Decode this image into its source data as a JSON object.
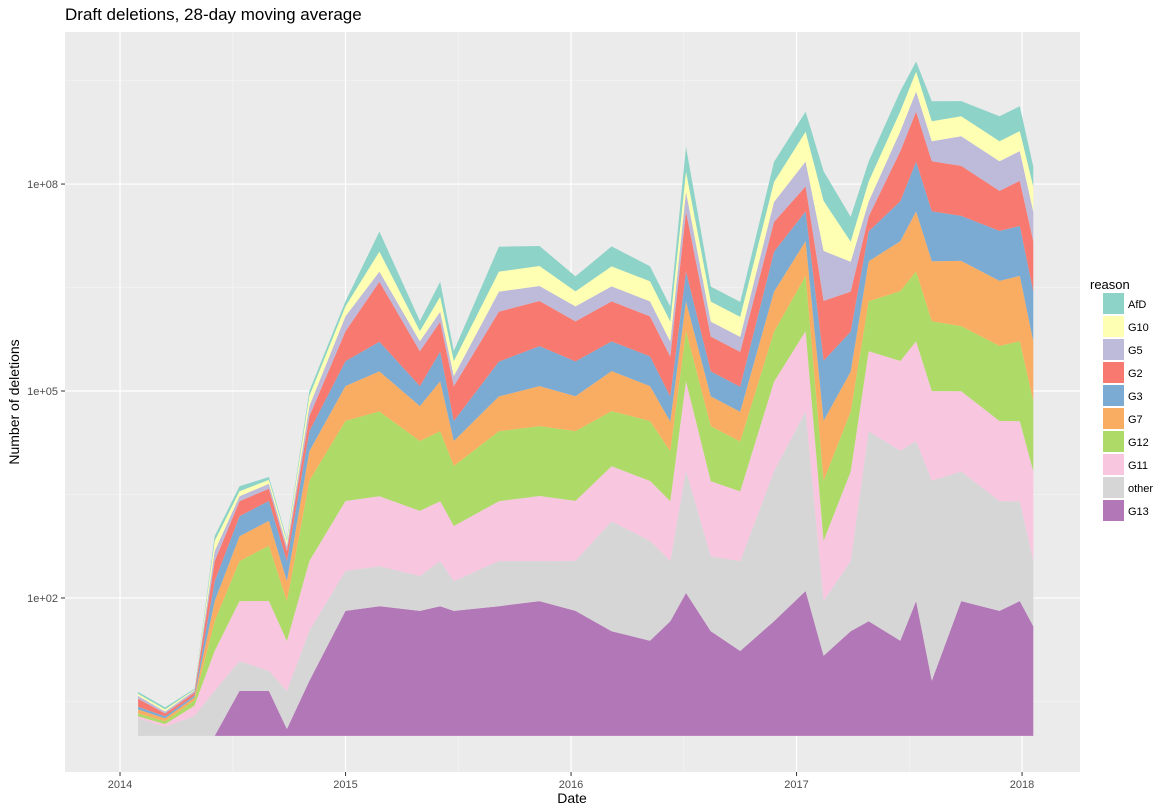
{
  "chart_data": {
    "type": "stacked-area",
    "title": "Draft deletions, 28-day moving average",
    "x_label": "Date",
    "y_label": "Number of deletions",
    "legend_title": "reason",
    "log_y": true,
    "grid": true,
    "legend_position": "right",
    "x": [
      2014.08,
      2014.2,
      2014.33,
      2014.42,
      2014.53,
      2014.66,
      2014.74,
      2014.84,
      2015.0,
      2015.15,
      2015.33,
      2015.42,
      2015.48,
      2015.68,
      2015.86,
      2016.02,
      2016.18,
      2016.35,
      2016.44,
      2016.51,
      2016.62,
      2016.75,
      2016.9,
      2017.04,
      2017.12,
      2017.24,
      2017.32,
      2017.46,
      2017.53,
      2017.6,
      2017.73,
      2017.9,
      2017.99,
      2018.05
    ],
    "xlim": [
      2013.756,
      2018.257
    ],
    "xticks": [
      2014,
      2015,
      2016,
      2017,
      2018
    ],
    "ylim": [
      0.3,
      16000000000
    ],
    "yticks": [
      {
        "value": 100,
        "label": "1e+02"
      },
      {
        "value": 100000,
        "label": "1e+05"
      },
      {
        "value": 100000000,
        "label": "1e+08"
      }
    ],
    "series": [
      {
        "name": "AfD",
        "color": "#8dd3c7",
        "values": [
          1.07,
          1.07,
          1.03,
          1.18,
          1.18,
          1.1,
          1.07,
          1.18,
          1.18,
          1.95,
          1.4,
          1.65,
          1.4,
          2.3,
          1.95,
          1.65,
          1.95,
          1.65,
          1.65,
          2.3,
          1.65,
          1.65,
          1.95,
          1.95,
          2.7,
          2.3,
          1.95,
          1.95,
          1.4,
          1.95,
          1.65,
          2.3,
          2.3,
          1.95
        ]
      },
      {
        "name": "G10",
        "color": "#ffffb3",
        "values": [
          1.07,
          1.07,
          1.03,
          1.4,
          1.18,
          1.14,
          1.18,
          1.4,
          1.4,
          1.95,
          1.4,
          1.65,
          1.65,
          1.95,
          1.95,
          1.65,
          1.95,
          1.95,
          1.95,
          1.95,
          1.95,
          1.95,
          1.95,
          2.7,
          5.3,
          1.95,
          1.95,
          1.95,
          1.95,
          1.95,
          1.95,
          1.95,
          1.95,
          2.3
        ]
      },
      {
        "name": "G5",
        "color": "#bebada",
        "values": [
          1.1,
          1.07,
          1.07,
          1.4,
          1.18,
          1.18,
          1.18,
          1.4,
          1.65,
          1.4,
          1.4,
          1.4,
          1.4,
          1.95,
          1.65,
          1.65,
          1.65,
          1.65,
          1.65,
          1.95,
          1.65,
          1.65,
          1.95,
          2.3,
          5.3,
          2.7,
          1.65,
          1.95,
          1.95,
          1.95,
          2.7,
          2.7,
          2.7,
          2.7
        ]
      },
      {
        "name": "G2",
        "color": "#f7796f",
        "values": [
          1.3,
          1.1,
          1.1,
          1.95,
          1.65,
          1.5,
          1.4,
          1.65,
          2.7,
          7.4,
          3.2,
          2.7,
          3.2,
          5.3,
          4.5,
          3.8,
          3.8,
          3.8,
          3.8,
          7.4,
          3.2,
          3.2,
          2.7,
          2.3,
          7.4,
          3.8,
          1.65,
          5.3,
          5.3,
          5.3,
          5.3,
          3.8,
          4.5,
          5.3
        ]
      },
      {
        "name": "G3",
        "color": "#7baad2",
        "values": [
          1.1,
          1.07,
          1.07,
          1.95,
          1.95,
          1.95,
          1.95,
          1.95,
          2.3,
          2.7,
          1.95,
          2.7,
          1.95,
          3.2,
          3.8,
          3.2,
          2.7,
          2.7,
          2.3,
          2.7,
          2.3,
          2.3,
          3.8,
          2.7,
          7.4,
          3.8,
          2.7,
          3.8,
          5.3,
          5.3,
          4.5,
          5.3,
          5.3,
          5.3
        ]
      },
      {
        "name": "G7",
        "color": "#f9ad63",
        "values": [
          1.14,
          1.1,
          1.1,
          1.95,
          2.3,
          2.3,
          1.95,
          2.7,
          3.2,
          3.8,
          3.2,
          5.3,
          2.3,
          3.2,
          3.8,
          3.2,
          3.8,
          3.2,
          2.7,
          2.7,
          2.7,
          2.7,
          3.8,
          3.2,
          7.4,
          3.8,
          3.8,
          5.3,
          7.4,
          7.4,
          8.8,
          8.8,
          8.8,
          7.4
        ]
      },
      {
        "name": "G12",
        "color": "#aedb68",
        "values": [
          1.1,
          1.1,
          1.2,
          2.7,
          3.8,
          6.3,
          3.8,
          14.5,
          14.5,
          17,
          10.3,
          10.3,
          7.4,
          10.3,
          10.3,
          10.3,
          6.3,
          7.4,
          5.3,
          5.3,
          6.3,
          5.3,
          5.3,
          6.3,
          7.4,
          7.4,
          5.3,
          10.3,
          10.3,
          10.3,
          8.8,
          12.2,
          14.5,
          10.3
        ]
      },
      {
        "name": "G11",
        "color": "#f8c6df",
        "values": [
          1.07,
          1.1,
          1.4,
          3.8,
          7.4,
          10.3,
          5.3,
          10.3,
          10.3,
          10.3,
          8.8,
          7.4,
          6.3,
          7.4,
          8.8,
          7.4,
          6.3,
          7.4,
          7.4,
          20,
          12.2,
          10.3,
          20,
          14.5,
          7.4,
          20,
          14.5,
          20,
          28,
          20,
          14.5,
          14.5,
          14.5,
          20
        ]
      },
      {
        "name": "other",
        "color": "#d6d6d6",
        "values": [
          1.8,
          1.35,
          1.95,
          4.5,
          2.7,
          1.95,
          3.55,
          5.3,
          3.8,
          3.8,
          3.2,
          4.5,
          2.7,
          4.5,
          3.8,
          5.3,
          39,
          28,
          7.4,
          59,
          12.2,
          20,
          148,
          404,
          6.3,
          10.3,
          567,
          567,
          208,
          792,
          76,
          39,
          28,
          8.8
        ]
      },
      {
        "name": "G13",
        "color": "#b277b6",
        "values": [
          1,
          1,
          1,
          1,
          4.5,
          4.5,
          1.26,
          6.3,
          65,
          76,
          65,
          76,
          65,
          76,
          90,
          65,
          33,
          24,
          46,
          118,
          33,
          17,
          46,
          126,
          14.5,
          33,
          46,
          24,
          90,
          6.3,
          90,
          65,
          90,
          39
        ]
      }
    ]
  }
}
